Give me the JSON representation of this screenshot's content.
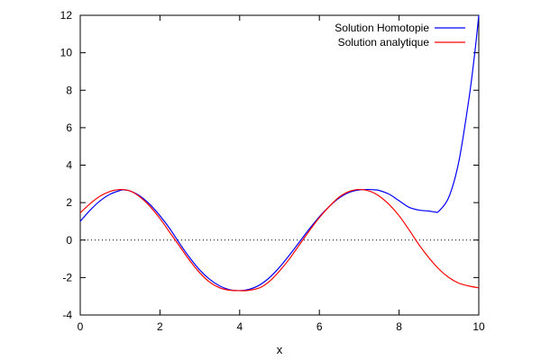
{
  "chart_data": {
    "type": "line",
    "title": "",
    "xlabel": "x",
    "ylabel": "",
    "xlim": [
      0,
      10
    ],
    "ylim": [
      -4,
      12
    ],
    "x_ticks": [
      0,
      2,
      4,
      6,
      8,
      10
    ],
    "y_ticks": [
      -4,
      -2,
      0,
      2,
      4,
      6,
      8,
      10,
      12
    ],
    "x_tick_labels": [
      "0",
      "2",
      "4",
      "6",
      "8",
      "10"
    ],
    "y_tick_labels": [
      "-4",
      "-2",
      "0",
      "2",
      "4",
      "6",
      "8",
      "10",
      "12"
    ],
    "grid": false,
    "zero_line": {
      "y": 0,
      "style": "dotted"
    },
    "legend_position": "top-right",
    "series": [
      {
        "name": "Solution Homotopie",
        "color": "#0000ff",
        "x": [
          0,
          0.25,
          0.5,
          0.75,
          1.0,
          1.1,
          1.25,
          1.5,
          1.75,
          2.0,
          2.25,
          2.5,
          2.75,
          3.0,
          3.25,
          3.5,
          3.75,
          4.0,
          4.25,
          4.5,
          4.75,
          5.0,
          5.25,
          5.5,
          5.75,
          6.0,
          6.25,
          6.5,
          6.75,
          7.0,
          7.25,
          7.4,
          7.5,
          7.75,
          8.0,
          8.25,
          8.5,
          8.75,
          8.9,
          9.0,
          9.25,
          9.5,
          9.75,
          9.9,
          10.0
        ],
        "y": [
          1.0,
          1.6,
          2.1,
          2.45,
          2.65,
          2.68,
          2.62,
          2.35,
          1.9,
          1.3,
          0.6,
          -0.2,
          -0.95,
          -1.6,
          -2.1,
          -2.45,
          -2.65,
          -2.7,
          -2.62,
          -2.4,
          -2.0,
          -1.45,
          -0.8,
          -0.1,
          0.6,
          1.25,
          1.8,
          2.25,
          2.55,
          2.68,
          2.7,
          2.68,
          2.65,
          2.45,
          2.1,
          1.75,
          1.6,
          1.55,
          1.5,
          1.55,
          2.3,
          4.2,
          7.5,
          10.0,
          12.0
        ]
      },
      {
        "name": "Solution analytique",
        "color": "#ff0000",
        "x": [
          0,
          0.25,
          0.5,
          0.75,
          1.0,
          1.25,
          1.5,
          1.75,
          2.0,
          2.25,
          2.5,
          2.75,
          3.0,
          3.25,
          3.5,
          3.75,
          4.0,
          4.2,
          4.5,
          4.75,
          5.0,
          5.25,
          5.5,
          5.75,
          6.0,
          6.25,
          6.5,
          6.75,
          7.0,
          7.25,
          7.5,
          7.75,
          8.0,
          8.25,
          8.5,
          8.75,
          9.0,
          9.25,
          9.5,
          9.75,
          10.0
        ],
        "y": [
          1.45,
          1.95,
          2.35,
          2.6,
          2.7,
          2.62,
          2.3,
          1.8,
          1.15,
          0.4,
          -0.35,
          -1.1,
          -1.75,
          -2.25,
          -2.55,
          -2.68,
          -2.7,
          -2.69,
          -2.55,
          -2.2,
          -1.65,
          -1.0,
          -0.25,
          0.5,
          1.2,
          1.8,
          2.3,
          2.6,
          2.7,
          2.62,
          2.35,
          1.9,
          1.3,
          0.55,
          -0.25,
          -0.95,
          -1.55,
          -2.0,
          -2.3,
          -2.45,
          -2.55
        ]
      }
    ]
  }
}
